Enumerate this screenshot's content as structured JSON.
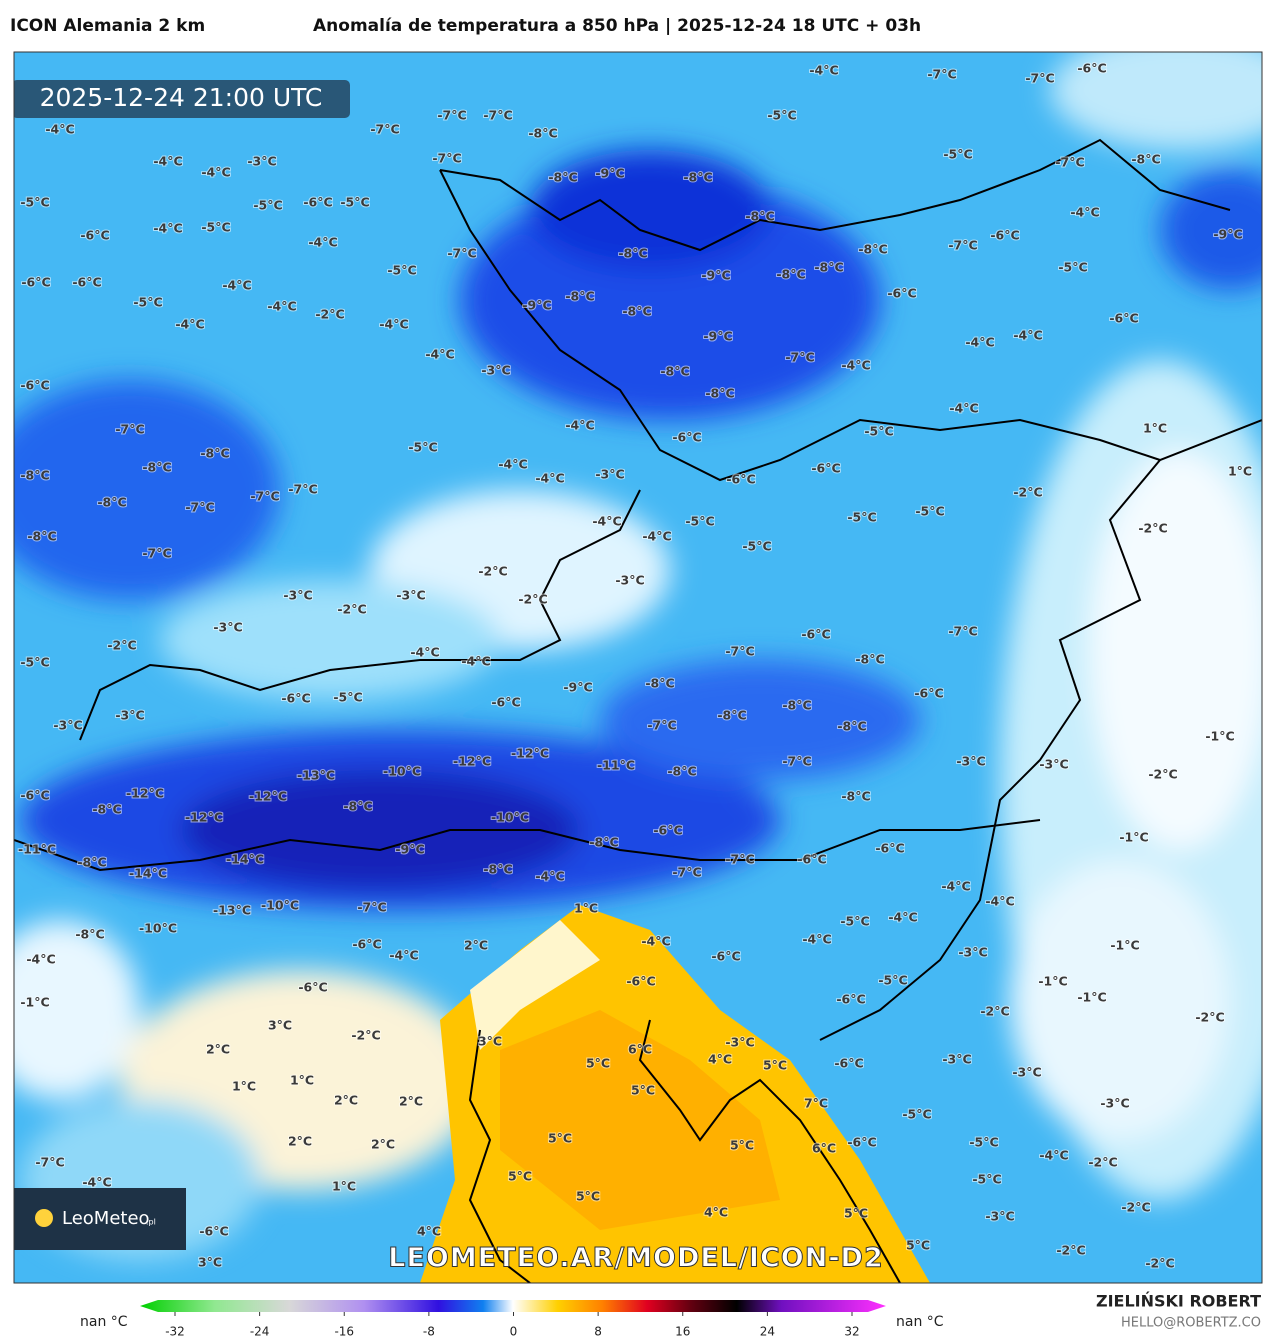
{
  "header": {
    "model": "ICON Alemania 2 km",
    "title": "Anomalía de temperatura a 850 hPa | 2025-12-24 18 UTC + 03h"
  },
  "timestamp": "2025-12-24 21:00 UTC",
  "map": {
    "labels": [
      "-7°C",
      "-7°C",
      "-8°C",
      "-7°C",
      "-7°C",
      "-8°C",
      "-9°C",
      "-8°C",
      "-5°C",
      "-4°C",
      "-7°C",
      "-7°C",
      "-6°C",
      "-5°C",
      "-7°C",
      "-8°C",
      "-4°C",
      "-9°C",
      "-8°C",
      "-8°C",
      "-7°C",
      "-9°C",
      "-8°C",
      "-8°C",
      "-8°C",
      "-7°C",
      "-6°C",
      "-6°C",
      "-5°C",
      "-9°C",
      "-8°C",
      "-8°C",
      "-9°C",
      "-6°C",
      "-4°C",
      "-4°C",
      "-7°C",
      "-4°C",
      "-8°C",
      "-8°C",
      "-4°C",
      "-5°C",
      "-6°C",
      "1°C",
      "1°C",
      "-6°C",
      "-6°C",
      "-2°C",
      "-5°C",
      "-5°C",
      "-2°C",
      "-5°C",
      "-5°C",
      "-4°C",
      "-4°C",
      "-3°C",
      "-4°C",
      "-4°C",
      "-3°C",
      "-5°C",
      "-4°C",
      "-3°C",
      "-4°C",
      "-4°C",
      "-2°C",
      "-4°C",
      "-4°C",
      "-5°C",
      "-4°C",
      "-4°C",
      "-5°C",
      "-6°C",
      "-5°C",
      "-5°C",
      "-5°C",
      "-4°C",
      "-6°C",
      "-5°C",
      "-6°C",
      "-6°C",
      "-4°C",
      "-4°C",
      "-3°C",
      "-4°C",
      "-6°C",
      "-7°C",
      "-8°C",
      "-8°C",
      "-8°C",
      "-8°C",
      "-7°C",
      "-7°C",
      "-7°C",
      "-8°C",
      "-7°C",
      "-2°C",
      "-2°C",
      "-3°C",
      "-2°C",
      "-3°C",
      "-3°C",
      "-2°C",
      "-5°C",
      "-4°C",
      "-4°C",
      "-6°C",
      "-7°C",
      "-7°C",
      "-8°C",
      "-9°C",
      "-8°C",
      "-6°C",
      "-6°C",
      "-5°C",
      "-6°C",
      "-3°C",
      "-3°C",
      "-8°C",
      "-8°C",
      "-7°C",
      "-8°C",
      "-1°C",
      "-12°C",
      "-12°C",
      "-10°C",
      "-13°C",
      "-11°C",
      "-8°C",
      "-7°C",
      "-3°C",
      "-3°C",
      "-2°C",
      "-12°C",
      "-12°C",
      "-8°C",
      "-8°C",
      "-6°C",
      "-8°C",
      "-12°C",
      "-10°C",
      "-6°C",
      "-8°C",
      "-1°C",
      "-11°C",
      "-8°C",
      "-14°C",
      "-9°C",
      "-7°C",
      "-6°C",
      "-6°C",
      "-14°C",
      "-8°C",
      "-4°C",
      "-7°C",
      "-4°C",
      "-4°C",
      "-13°C",
      "-10°C",
      "-7°C",
      "1°C",
      "-5°C",
      "-4°C",
      "-10°C",
      "-8°C",
      "-4°C",
      "-1°C",
      "-6°C",
      "2°C",
      "-4°C",
      "-4°C",
      "-4°C",
      "-3°C",
      "-6°C",
      "-6°C",
      "-5°C",
      "-1°C",
      "-6°C",
      "-6°C",
      "-1°C",
      "-1°C",
      "-2°C",
      "-2°C",
      "3°C",
      "-2°C",
      "3°C",
      "-3°C",
      "6°C",
      "2°C",
      "4°C",
      "-3°C",
      "5°C",
      "5°C",
      "-6°C",
      "-3°C",
      "1°C",
      "1°C",
      "5°C",
      "-3°C",
      "7°C",
      "2°C",
      "2°C",
      "-5°C",
      "5°C",
      "6°C",
      "-6°C",
      "2°C",
      "2°C",
      "5°C",
      "-5°C",
      "-4°C",
      "-2°C",
      "-7°C",
      "5°C",
      "-5°C",
      "-4°C",
      "1°C",
      "5°C",
      "-2°C",
      "5°C",
      "-3°C",
      "4°C",
      "4°C",
      "-6°C",
      "5°C",
      "-2°C",
      "3°C",
      "-2°C"
    ]
  },
  "logo": {
    "name": "LeoMeteo",
    "suffix": ".pl"
  },
  "watermark": "LEOMETEO.AR/MODEL/ICON-D2",
  "legend": {
    "lim": [
      -32,
      32
    ],
    "ticks": [
      -32,
      -24,
      -16,
      -8,
      0,
      8,
      16,
      24,
      32
    ],
    "left_label": "nan °C",
    "right_label": "nan °C"
  },
  "credit": {
    "author": "ZIELIŃSKI ROBERT",
    "email": "HELLO@ROBERTZ.CO"
  }
}
